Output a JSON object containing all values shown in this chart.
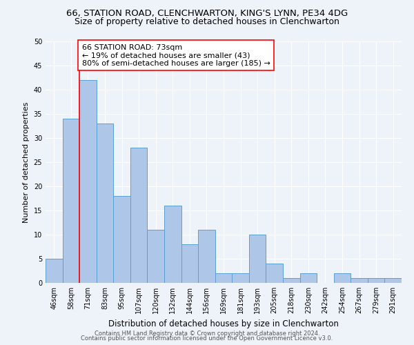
{
  "title1": "66, STATION ROAD, CLENCHWARTON, KING'S LYNN, PE34 4DG",
  "title2": "Size of property relative to detached houses in Clenchwarton",
  "xlabel": "Distribution of detached houses by size in Clenchwarton",
  "ylabel": "Number of detached properties",
  "categories": [
    "46sqm",
    "58sqm",
    "71sqm",
    "83sqm",
    "95sqm",
    "107sqm",
    "120sqm",
    "132sqm",
    "144sqm",
    "156sqm",
    "169sqm",
    "181sqm",
    "193sqm",
    "205sqm",
    "218sqm",
    "230sqm",
    "242sqm",
    "254sqm",
    "267sqm",
    "279sqm",
    "291sqm"
  ],
  "values": [
    5,
    34,
    42,
    33,
    18,
    28,
    11,
    16,
    8,
    11,
    2,
    2,
    10,
    4,
    1,
    2,
    0,
    2,
    1,
    1,
    1
  ],
  "bar_color": "#aec6e8",
  "bar_edge_color": "#5a9fd4",
  "red_line_index": 2,
  "annotation_text": "66 STATION ROAD: 73sqm\n← 19% of detached houses are smaller (43)\n80% of semi-detached houses are larger (185) →",
  "ylim": [
    0,
    50
  ],
  "yticks": [
    0,
    5,
    10,
    15,
    20,
    25,
    30,
    35,
    40,
    45,
    50
  ],
  "footer1": "Contains HM Land Registry data © Crown copyright and database right 2024.",
  "footer2": "Contains public sector information licensed under the Open Government Licence v3.0.",
  "bg_color": "#eef2f9",
  "grid_color": "#ffffff",
  "title1_fontsize": 9.5,
  "title2_fontsize": 9,
  "annotation_fontsize": 8,
  "ylabel_fontsize": 8,
  "xlabel_fontsize": 8.5,
  "tick_fontsize": 7,
  "footer_fontsize": 6
}
